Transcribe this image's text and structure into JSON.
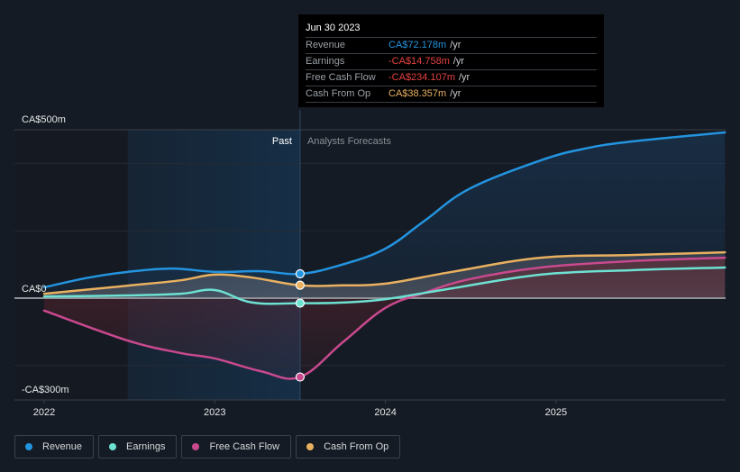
{
  "tooltip": {
    "date": "Jun 30 2023",
    "rows": [
      {
        "label": "Revenue",
        "value": "CA$72.178m",
        "unit": "/yr",
        "color": "#2394df"
      },
      {
        "label": "Earnings",
        "value": "-CA$14.758m",
        "unit": "/yr",
        "color": "#e64141"
      },
      {
        "label": "Free Cash Flow",
        "value": "-CA$234.107m",
        "unit": "/yr",
        "color": "#e64141"
      },
      {
        "label": "Cash From Op",
        "value": "CA$38.357m",
        "unit": "/yr",
        "color": "#e9b060"
      }
    ]
  },
  "legend": [
    {
      "label": "Revenue",
      "color": "#2394df"
    },
    {
      "label": "Earnings",
      "color": "#6de1d2"
    },
    {
      "label": "Free Cash Flow",
      "color": "#c9498e"
    },
    {
      "label": "Cash From Op",
      "color": "#e9b060"
    }
  ],
  "chart_data": {
    "type": "line",
    "title": "",
    "xlabel": "",
    "ylabel": "",
    "y_tick_labels": [
      "CA$500m",
      "CA$0",
      "-CA$300m"
    ],
    "x_tick_labels": [
      "2022",
      "2023",
      "2024",
      "2025"
    ],
    "ylim": [
      -300,
      500
    ],
    "xlim": [
      2021.93,
      2025.99
    ],
    "grid": true,
    "legend_position": "bottom-left",
    "past_label": "Past",
    "forecast_label": "Analysts Forecasts",
    "past_highlight_start": 2022.49,
    "divider_x": 2023.5,
    "series": [
      {
        "name": "Revenue",
        "color": "#2394df",
        "points": [
          [
            2022.0,
            32
          ],
          [
            2022.25,
            60
          ],
          [
            2022.49,
            78
          ],
          [
            2022.75,
            88
          ],
          [
            2023.0,
            78
          ],
          [
            2023.27,
            80
          ],
          [
            2023.5,
            72
          ],
          [
            2023.75,
            100
          ],
          [
            2024.0,
            147
          ],
          [
            2024.23,
            230
          ],
          [
            2024.49,
            324
          ],
          [
            2024.91,
            409
          ],
          [
            2025.17,
            444
          ],
          [
            2025.44,
            465
          ],
          [
            2025.99,
            492
          ]
        ]
      },
      {
        "name": "Earnings",
        "color": "#6de1d2",
        "points": [
          [
            2022.0,
            5
          ],
          [
            2022.49,
            8
          ],
          [
            2022.8,
            13
          ],
          [
            2023.0,
            24
          ],
          [
            2023.22,
            -13
          ],
          [
            2023.5,
            -15
          ],
          [
            2023.75,
            -13
          ],
          [
            2024.0,
            -3
          ],
          [
            2024.39,
            29
          ],
          [
            2024.91,
            70
          ],
          [
            2025.44,
            83
          ],
          [
            2025.99,
            91
          ]
        ]
      },
      {
        "name": "Free Cash Flow",
        "color": "#c9498e",
        "points": [
          [
            2022.0,
            -37
          ],
          [
            2022.49,
            -126
          ],
          [
            2022.8,
            -163
          ],
          [
            2023.0,
            -179
          ],
          [
            2023.27,
            -217
          ],
          [
            2023.5,
            -234
          ],
          [
            2023.75,
            -131
          ],
          [
            2024.0,
            -29
          ],
          [
            2024.23,
            16
          ],
          [
            2024.49,
            56
          ],
          [
            2024.91,
            91
          ],
          [
            2025.44,
            110
          ],
          [
            2025.99,
            120
          ]
        ]
      },
      {
        "name": "Cash From Op",
        "color": "#e9b060",
        "points": [
          [
            2022.0,
            13
          ],
          [
            2022.49,
            37
          ],
          [
            2022.8,
            53
          ],
          [
            2023.0,
            70
          ],
          [
            2023.22,
            61
          ],
          [
            2023.5,
            38
          ],
          [
            2023.75,
            38
          ],
          [
            2024.0,
            43
          ],
          [
            2024.39,
            78
          ],
          [
            2024.91,
            120
          ],
          [
            2025.44,
            128
          ],
          [
            2025.99,
            136
          ]
        ]
      }
    ],
    "highlight_points": [
      {
        "series": "Revenue",
        "x": 2023.5,
        "y": 72.178
      },
      {
        "series": "Earnings",
        "x": 2023.5,
        "y": -14.758
      },
      {
        "series": "Free Cash Flow",
        "x": 2023.5,
        "y": -234.107
      },
      {
        "series": "Cash From Op",
        "x": 2023.5,
        "y": 38.357
      }
    ]
  }
}
